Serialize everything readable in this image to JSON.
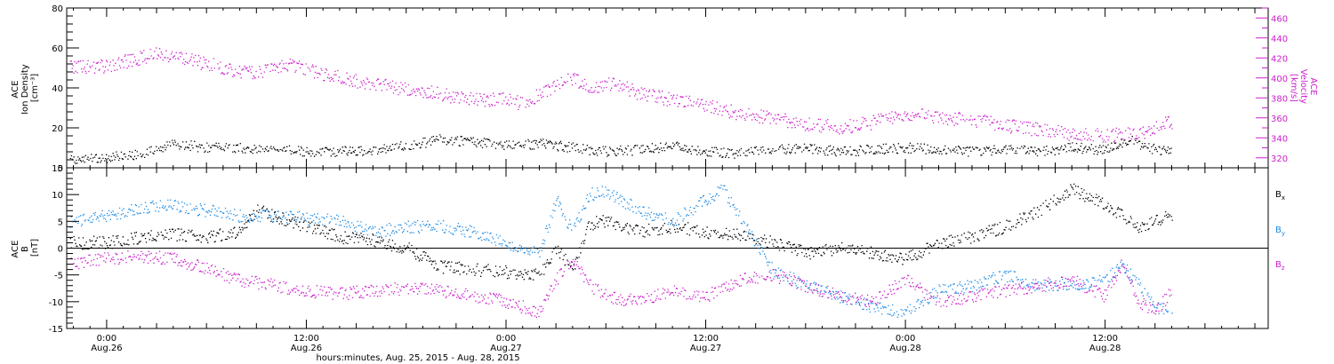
{
  "colors": {
    "black": "#000000",
    "blue": "#1e8ce6",
    "magenta": "#cc1fcc"
  },
  "footer": {
    "xlabel": "hours:minutes, Aug. 25, 2015 - Aug. 28, 2015"
  },
  "time_ticks": [
    {
      "hours": 0,
      "time": "0:00",
      "date": "Aug.26"
    },
    {
      "hours": 12,
      "time": "12:00",
      "date": "Aug.26"
    },
    {
      "hours": 24,
      "time": "0:00",
      "date": "Aug.27"
    },
    {
      "hours": 36,
      "time": "12:00",
      "date": "Aug.27"
    },
    {
      "hours": 48,
      "time": "0:00",
      "date": "Aug.28"
    },
    {
      "hours": 60,
      "time": "12:00",
      "date": "Aug.28"
    }
  ],
  "chart_data": [
    {
      "type": "scatter",
      "name": "plasma",
      "xlim_hours": [
        -2.4,
        69.8
      ],
      "left_axis": {
        "label_lines": [
          "ACE",
          "Ion Density",
          "[cm⁻³]"
        ],
        "ylim": [
          0,
          80
        ],
        "ticks": [
          0,
          20,
          40,
          60,
          80
        ],
        "color": "#000000"
      },
      "right_axis": {
        "label_lines": [
          "ACE",
          "Velocity",
          "[km/s]"
        ],
        "ylim": [
          310,
          470
        ],
        "ticks": [
          320,
          340,
          360,
          380,
          400,
          420,
          440,
          460
        ],
        "color": "#cc1fcc"
      },
      "density_knots": [
        [
          -2.2,
          4
        ],
        [
          0,
          5
        ],
        [
          1,
          6
        ],
        [
          2,
          7
        ],
        [
          3,
          9
        ],
        [
          4,
          12
        ],
        [
          5,
          11
        ],
        [
          6,
          10
        ],
        [
          8,
          10
        ],
        [
          10,
          9
        ],
        [
          12,
          8
        ],
        [
          14,
          8
        ],
        [
          16,
          9
        ],
        [
          18,
          11
        ],
        [
          20,
          14
        ],
        [
          22,
          13
        ],
        [
          24,
          11
        ],
        [
          26,
          12
        ],
        [
          28,
          10
        ],
        [
          30,
          8
        ],
        [
          32,
          9
        ],
        [
          34,
          11
        ],
        [
          36,
          8
        ],
        [
          38,
          7
        ],
        [
          40,
          9
        ],
        [
          42,
          10
        ],
        [
          44,
          8
        ],
        [
          46,
          9
        ],
        [
          48,
          10
        ],
        [
          50,
          9
        ],
        [
          52,
          8
        ],
        [
          54,
          9
        ],
        [
          56,
          8
        ],
        [
          58,
          10
        ],
        [
          60,
          9
        ],
        [
          61.5,
          14
        ],
        [
          62.5,
          10
        ],
        [
          64,
          8
        ]
      ],
      "velocity_knots": [
        [
          -2.2,
          410
        ],
        [
          0,
          412
        ],
        [
          1,
          416
        ],
        [
          2,
          420
        ],
        [
          3,
          425
        ],
        [
          4,
          422
        ],
        [
          5,
          418
        ],
        [
          6,
          414
        ],
        [
          7,
          410
        ],
        [
          8,
          406
        ],
        [
          9,
          404
        ],
        [
          10,
          410
        ],
        [
          11,
          414
        ],
        [
          12,
          408
        ],
        [
          14,
          400
        ],
        [
          16,
          394
        ],
        [
          18,
          388
        ],
        [
          20,
          384
        ],
        [
          22,
          378
        ],
        [
          24,
          378
        ],
        [
          25,
          374
        ],
        [
          27,
          392
        ],
        [
          28,
          400
        ],
        [
          29,
          390
        ],
        [
          30,
          394
        ],
        [
          31,
          392
        ],
        [
          32,
          384
        ],
        [
          34,
          378
        ],
        [
          36,
          372
        ],
        [
          38,
          364
        ],
        [
          40,
          360
        ],
        [
          42,
          354
        ],
        [
          44,
          350
        ],
        [
          46,
          355
        ],
        [
          48,
          364
        ],
        [
          50,
          360
        ],
        [
          52,
          358
        ],
        [
          54,
          352
        ],
        [
          56,
          348
        ],
        [
          58,
          344
        ],
        [
          60,
          342
        ],
        [
          62,
          344
        ],
        [
          63,
          350
        ],
        [
          64,
          356
        ]
      ]
    },
    {
      "type": "scatter",
      "name": "magnetic field",
      "xlim_hours": [
        -2.4,
        69.8
      ],
      "left_axis": {
        "label_lines": [
          "ACE",
          "B",
          "[nT]"
        ],
        "ylim": [
          -15,
          15
        ],
        "ticks": [
          -15,
          -10,
          -5,
          0,
          5,
          10,
          15
        ],
        "color": "#000000"
      },
      "zero_line": true,
      "series": [
        {
          "name": "Bx",
          "color": "#000000",
          "knots": [
            [
              -2.2,
              1
            ],
            [
              0,
              1
            ],
            [
              2,
              2
            ],
            [
              4,
              2.5
            ],
            [
              6,
              2
            ],
            [
              8,
              3
            ],
            [
              9,
              7
            ],
            [
              11,
              5
            ],
            [
              12,
              4
            ],
            [
              14,
              2
            ],
            [
              16,
              1.5
            ],
            [
              18,
              0
            ],
            [
              20,
              -3.5
            ],
            [
              22,
              -4
            ],
            [
              24,
              -4.5
            ],
            [
              26,
              -5
            ],
            [
              27,
              0
            ],
            [
              28,
              -4
            ],
            [
              29,
              4.5
            ],
            [
              30,
              5
            ],
            [
              32,
              3
            ],
            [
              34,
              4
            ],
            [
              36,
              3
            ],
            [
              38,
              2.5
            ],
            [
              40,
              1
            ],
            [
              42,
              -1
            ],
            [
              44,
              0
            ],
            [
              46,
              -1
            ],
            [
              48,
              -2
            ],
            [
              50,
              1
            ],
            [
              52,
              2
            ],
            [
              54,
              4
            ],
            [
              56,
              7
            ],
            [
              57,
              9
            ],
            [
              58,
              11
            ],
            [
              60,
              8
            ],
            [
              61,
              6
            ],
            [
              62,
              4
            ],
            [
              63,
              5
            ],
            [
              64,
              6
            ]
          ]
        },
        {
          "name": "By",
          "color": "#1e8ce6",
          "knots": [
            [
              -2.2,
              5
            ],
            [
              0,
              6
            ],
            [
              2,
              7.5
            ],
            [
              4,
              8
            ],
            [
              6,
              7
            ],
            [
              8,
              6
            ],
            [
              10,
              6
            ],
            [
              12,
              5.5
            ],
            [
              14,
              5
            ],
            [
              16,
              3
            ],
            [
              18,
              4
            ],
            [
              20,
              4
            ],
            [
              22,
              3
            ],
            [
              24,
              1
            ],
            [
              26,
              -1
            ],
            [
              27,
              9
            ],
            [
              28,
              3
            ],
            [
              29,
              10
            ],
            [
              30,
              10.5
            ],
            [
              32,
              7
            ],
            [
              34,
              5
            ],
            [
              36,
              9
            ],
            [
              37,
              11
            ],
            [
              38,
              6
            ],
            [
              39,
              1
            ],
            [
              40,
              -4
            ],
            [
              42,
              -7
            ],
            [
              44,
              -9
            ],
            [
              46,
              -11
            ],
            [
              48,
              -12
            ],
            [
              50,
              -8
            ],
            [
              52,
              -7
            ],
            [
              54,
              -5
            ],
            [
              56,
              -7
            ],
            [
              58,
              -7
            ],
            [
              60,
              -6
            ],
            [
              61,
              -3
            ],
            [
              62,
              -7
            ],
            [
              63,
              -11
            ],
            [
              64,
              -12
            ]
          ]
        },
        {
          "name": "Bz",
          "color": "#cc1fcc",
          "knots": [
            [
              -2.2,
              -3
            ],
            [
              0,
              -2
            ],
            [
              2,
              -1.5
            ],
            [
              4,
              -2
            ],
            [
              6,
              -4
            ],
            [
              8,
              -6
            ],
            [
              10,
              -7
            ],
            [
              12,
              -8
            ],
            [
              14,
              -8.5
            ],
            [
              16,
              -8
            ],
            [
              18,
              -7.5
            ],
            [
              20,
              -8
            ],
            [
              22,
              -9
            ],
            [
              24,
              -10
            ],
            [
              26,
              -12
            ],
            [
              27,
              -6
            ],
            [
              28,
              -2
            ],
            [
              29,
              -7
            ],
            [
              30,
              -9
            ],
            [
              32,
              -10
            ],
            [
              34,
              -8
            ],
            [
              36,
              -9
            ],
            [
              38,
              -6
            ],
            [
              40,
              -5
            ],
            [
              42,
              -7
            ],
            [
              44,
              -9
            ],
            [
              46,
              -10
            ],
            [
              48,
              -6
            ],
            [
              50,
              -10
            ],
            [
              52,
              -9
            ],
            [
              54,
              -8
            ],
            [
              56,
              -7
            ],
            [
              58,
              -6
            ],
            [
              60,
              -9
            ],
            [
              61,
              -3
            ],
            [
              62,
              -10
            ],
            [
              63,
              -12
            ],
            [
              64,
              -8
            ]
          ]
        }
      ]
    }
  ]
}
